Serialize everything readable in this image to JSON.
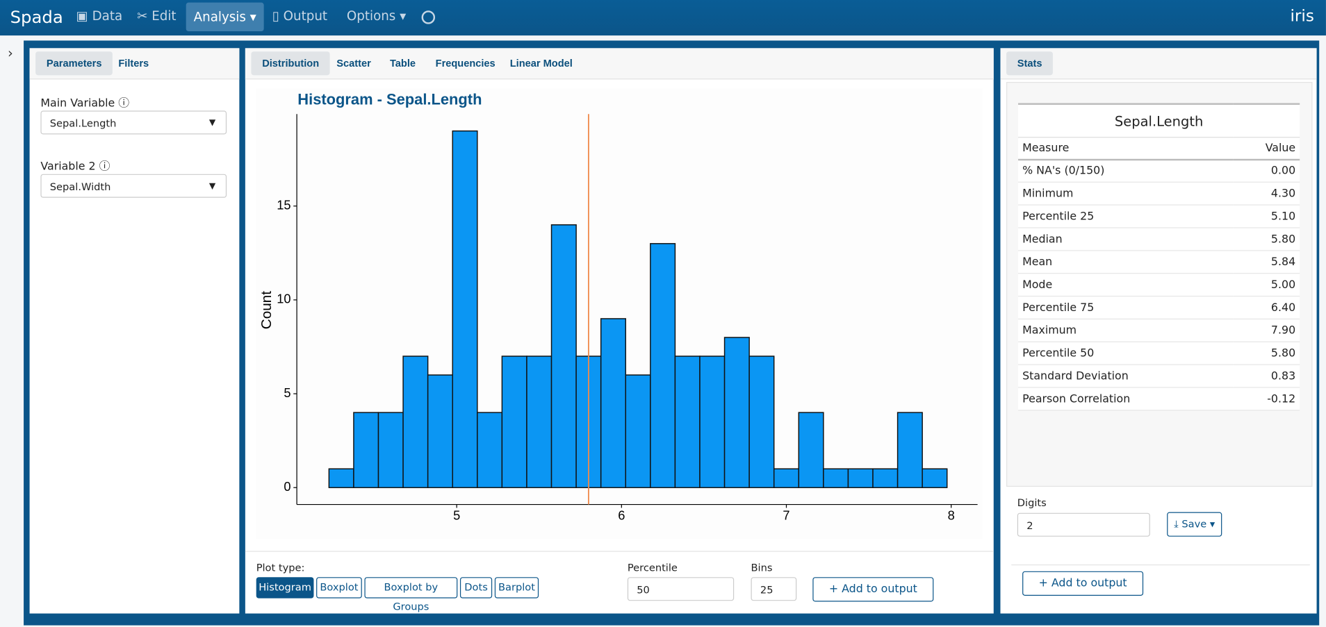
{
  "navbar": {
    "brand": "Spada",
    "items": [
      "Data",
      "Edit",
      "Analysis",
      "Output",
      "Options"
    ],
    "dataset": "iris"
  },
  "left_panel": {
    "tabs": [
      "Parameters",
      "Filters"
    ],
    "fields": [
      {
        "label": "Main Variable",
        "value": "Sepal.Length"
      },
      {
        "label": "Variable 2",
        "value": "Sepal.Width"
      }
    ]
  },
  "center_panel": {
    "tabs": [
      "Distribution",
      "Scatter",
      "Table",
      "Frequencies",
      "Linear Model"
    ],
    "plot_type_label": "Plot type:",
    "plot_types": [
      "Histogram",
      "Boxplot",
      "Boxplot by Groups",
      "Dots",
      "Barplot"
    ],
    "percentile": {
      "label": "Percentile",
      "value": "50"
    },
    "bins_input": {
      "label": "Bins",
      "value": "25"
    },
    "add_button": "Add to output"
  },
  "chart_data": {
    "type": "histogram",
    "title": "Histogram - Sepal.Length",
    "ylabel": "Count",
    "color": "#0b96f3",
    "bins": [
      4.225,
      4.375,
      4.525,
      4.675,
      4.825,
      4.975,
      5.125,
      5.275,
      5.425,
      5.575,
      5.725,
      5.875,
      6.025,
      6.175,
      6.325,
      6.475,
      6.625,
      6.775,
      6.925,
      7.075,
      7.225,
      7.375,
      7.525,
      7.675,
      7.825,
      7.975
    ],
    "values": [
      1,
      4,
      4,
      7,
      6,
      19,
      4,
      7,
      7,
      14,
      7,
      9,
      6,
      13,
      7,
      7,
      8,
      7,
      1,
      4,
      1,
      1,
      1,
      4,
      1
    ],
    "xlim": [
      4.03,
      8.16
    ],
    "ylim": [
      -0.9,
      19.9
    ],
    "xticks": [
      5,
      6,
      7,
      8
    ],
    "yticks": [
      0,
      5,
      10,
      15
    ],
    "vline": 5.8,
    "vline_color": "#f08a4b"
  },
  "right_panel": {
    "tabs": [
      "Stats"
    ],
    "stats": {
      "title": "Sepal.Length",
      "header": [
        "Measure",
        "Value"
      ],
      "rows": [
        [
          "% NA's (0/150)",
          "0.00"
        ],
        [
          "Minimum",
          "4.30"
        ],
        [
          "Percentile 25",
          "5.10"
        ],
        [
          "Median",
          "5.80"
        ],
        [
          "Mean",
          "5.84"
        ],
        [
          "Mode",
          "5.00"
        ],
        [
          "Percentile 75",
          "6.40"
        ],
        [
          "Maximum",
          "7.90"
        ],
        [
          "Percentile 50",
          "5.80"
        ],
        [
          "Standard Deviation",
          "0.83"
        ],
        [
          "Pearson Correlation",
          "-0.12"
        ]
      ]
    },
    "digits": {
      "label": "Digits",
      "value": "2"
    },
    "save_button": "Save",
    "add_button": "Add to output"
  }
}
